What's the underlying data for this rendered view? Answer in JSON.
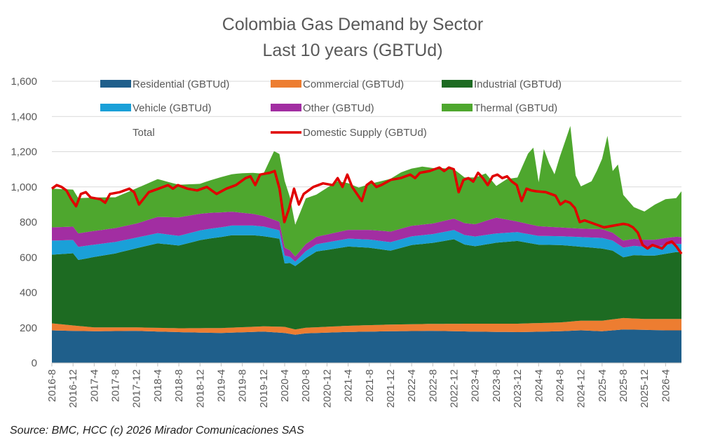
{
  "chart_data": {
    "type": "area",
    "title": "Colombia Gas Demand by Sector",
    "subtitle": "Last 10 years (GBTUd)",
    "source": "Source: BMC, HCC (c) 2026 Mirador Comunicaciones SAS",
    "ylim": [
      0,
      1600
    ],
    "y_ticks": [
      "0",
      "200",
      "400",
      "600",
      "800",
      "1,000",
      "1,200",
      "1,400",
      "1,600"
    ],
    "x_start": "2016-8",
    "x_end": "2026-7",
    "x_tick_labels": [
      "2016-8",
      "2016-12",
      "2017-4",
      "2017-8",
      "2017-12",
      "2018-4",
      "2018-8",
      "2018-12",
      "2019-4",
      "2019-8",
      "2019-12",
      "2020-4",
      "2020-8",
      "2020-12",
      "2021-4",
      "2021-8",
      "2021-12",
      "2022-4",
      "2022-8",
      "2022-12",
      "2023-4",
      "2023-8",
      "2023-12",
      "2024-4",
      "2024-8",
      "2024-12",
      "2025-4",
      "2025-8",
      "2025-12",
      "2026-4"
    ],
    "grid": true,
    "legend": [
      {
        "key": "residential",
        "label": "Residential (GBTUd)",
        "color": "#1f5f8b",
        "kind": "area"
      },
      {
        "key": "commercial",
        "label": "Commercial (GBTUd)",
        "color": "#ed7d31",
        "kind": "area"
      },
      {
        "key": "industrial",
        "label": "Industrial (GBTUd)",
        "color": "#1d6b22",
        "kind": "area"
      },
      {
        "key": "vehicle",
        "label": "Vehicle (GBTUd)",
        "color": "#1aa0d8",
        "kind": "area"
      },
      {
        "key": "other",
        "label": "Other (GBTUd)",
        "color": "#a22ea2",
        "kind": "area"
      },
      {
        "key": "thermal",
        "label": "Thermal (GBTUd)",
        "color": "#4ea72e",
        "kind": "area"
      },
      {
        "key": "total",
        "label": "Total",
        "color": "none",
        "kind": "none"
      },
      {
        "key": "supply",
        "label": "Domestic Supply (GBTUd)",
        "color": "#e00000",
        "kind": "line"
      }
    ],
    "anchors": {
      "residential": [
        [
          0,
          185
        ],
        [
          4,
          182
        ],
        [
          8,
          180
        ],
        [
          16,
          182
        ],
        [
          24,
          175
        ],
        [
          32,
          170
        ],
        [
          40,
          178
        ],
        [
          44,
          170
        ],
        [
          46,
          160
        ],
        [
          48,
          168
        ],
        [
          56,
          176
        ],
        [
          64,
          180
        ],
        [
          72,
          182
        ],
        [
          80,
          178
        ],
        [
          88,
          175
        ],
        [
          96,
          180
        ],
        [
          100,
          185
        ],
        [
          104,
          180
        ],
        [
          108,
          190
        ],
        [
          112,
          188
        ],
        [
          116,
          185
        ],
        [
          119,
          185
        ]
      ],
      "commercial": [
        [
          0,
          40
        ],
        [
          8,
          22
        ],
        [
          16,
          20
        ],
        [
          24,
          22
        ],
        [
          32,
          28
        ],
        [
          40,
          30
        ],
        [
          44,
          35
        ],
        [
          46,
          30
        ],
        [
          48,
          32
        ],
        [
          56,
          35
        ],
        [
          64,
          38
        ],
        [
          72,
          40
        ],
        [
          80,
          45
        ],
        [
          88,
          48
        ],
        [
          96,
          50
        ],
        [
          100,
          55
        ],
        [
          104,
          60
        ],
        [
          108,
          65
        ],
        [
          112,
          62
        ],
        [
          116,
          65
        ],
        [
          119,
          65
        ]
      ],
      "industrial": [
        [
          0,
          390
        ],
        [
          4,
          410
        ],
        [
          5,
          375
        ],
        [
          8,
          400
        ],
        [
          12,
          420
        ],
        [
          16,
          450
        ],
        [
          20,
          480
        ],
        [
          24,
          470
        ],
        [
          28,
          500
        ],
        [
          30,
          510
        ],
        [
          34,
          525
        ],
        [
          38,
          520
        ],
        [
          43,
          500
        ],
        [
          44,
          360
        ],
        [
          45,
          370
        ],
        [
          46,
          360
        ],
        [
          50,
          430
        ],
        [
          56,
          450
        ],
        [
          60,
          440
        ],
        [
          64,
          420
        ],
        [
          68,
          450
        ],
        [
          72,
          460
        ],
        [
          76,
          480
        ],
        [
          78,
          450
        ],
        [
          80,
          440
        ],
        [
          84,
          460
        ],
        [
          88,
          470
        ],
        [
          92,
          445
        ],
        [
          96,
          440
        ],
        [
          100,
          420
        ],
        [
          104,
          410
        ],
        [
          106,
          390
        ],
        [
          108,
          345
        ],
        [
          110,
          360
        ],
        [
          114,
          360
        ],
        [
          118,
          380
        ],
        [
          119,
          380
        ]
      ],
      "vehicle": [
        [
          0,
          80
        ],
        [
          8,
          70
        ],
        [
          16,
          60
        ],
        [
          24,
          55
        ],
        [
          32,
          55
        ],
        [
          40,
          55
        ],
        [
          44,
          45
        ],
        [
          46,
          25
        ],
        [
          48,
          40
        ],
        [
          56,
          45
        ],
        [
          64,
          48
        ],
        [
          72,
          50
        ],
        [
          80,
          55
        ],
        [
          88,
          50
        ],
        [
          96,
          50
        ],
        [
          100,
          55
        ],
        [
          104,
          60
        ],
        [
          108,
          55
        ],
        [
          112,
          50
        ],
        [
          116,
          50
        ],
        [
          119,
          45
        ]
      ],
      "other": [
        [
          0,
          75
        ],
        [
          8,
          78
        ],
        [
          16,
          80
        ],
        [
          24,
          105
        ],
        [
          32,
          85
        ],
        [
          40,
          60
        ],
        [
          44,
          45
        ],
        [
          46,
          30
        ],
        [
          48,
          40
        ],
        [
          56,
          50
        ],
        [
          64,
          60
        ],
        [
          72,
          60
        ],
        [
          80,
          70
        ],
        [
          84,
          90
        ],
        [
          88,
          60
        ],
        [
          92,
          55
        ],
        [
          96,
          50
        ],
        [
          100,
          48
        ],
        [
          104,
          50
        ],
        [
          108,
          40
        ],
        [
          112,
          40
        ],
        [
          116,
          40
        ],
        [
          119,
          40
        ]
      ],
      "thermal": [
        [
          0,
          220
        ],
        [
          4,
          210
        ],
        [
          5,
          200
        ],
        [
          8,
          190
        ],
        [
          12,
          175
        ],
        [
          16,
          200
        ],
        [
          20,
          215
        ],
        [
          24,
          185
        ],
        [
          28,
          170
        ],
        [
          32,
          200
        ],
        [
          36,
          225
        ],
        [
          40,
          240
        ],
        [
          42,
          390
        ],
        [
          44,
          380
        ],
        [
          45,
          300
        ],
        [
          46,
          180
        ],
        [
          48,
          260
        ],
        [
          50,
          240
        ],
        [
          54,
          290
        ],
        [
          58,
          240
        ],
        [
          62,
          280
        ],
        [
          66,
          320
        ],
        [
          70,
          330
        ],
        [
          74,
          300
        ],
        [
          78,
          260
        ],
        [
          82,
          270
        ],
        [
          84,
          180
        ],
        [
          86,
          230
        ],
        [
          87,
          240
        ],
        [
          88,
          250
        ],
        [
          90,
          400
        ],
        [
          91,
          440
        ],
        [
          92,
          250
        ],
        [
          93,
          440
        ],
        [
          94,
          360
        ],
        [
          95,
          300
        ],
        [
          96,
          400
        ],
        [
          97,
          490
        ],
        [
          98,
          580
        ],
        [
          99,
          300
        ],
        [
          100,
          240
        ],
        [
          102,
          270
        ],
        [
          103,
          330
        ],
        [
          104,
          400
        ],
        [
          105,
          540
        ],
        [
          106,
          350
        ],
        [
          107,
          410
        ],
        [
          108,
          260
        ],
        [
          110,
          180
        ],
        [
          112,
          160
        ],
        [
          114,
          200
        ],
        [
          116,
          220
        ],
        [
          118,
          220
        ],
        [
          119,
          260
        ]
      ],
      "supply": [
        [
          0,
          990
        ],
        [
          1,
          1010
        ],
        [
          2,
          1000
        ],
        [
          3,
          980
        ],
        [
          4,
          930
        ],
        [
          5,
          890
        ],
        [
          6,
          960
        ],
        [
          7,
          970
        ],
        [
          8,
          940
        ],
        [
          10,
          930
        ],
        [
          11,
          910
        ],
        [
          12,
          960
        ],
        [
          14,
          970
        ],
        [
          16,
          990
        ],
        [
          17,
          970
        ],
        [
          18,
          900
        ],
        [
          20,
          970
        ],
        [
          22,
          990
        ],
        [
          24,
          1010
        ],
        [
          25,
          990
        ],
        [
          26,
          1010
        ],
        [
          28,
          990
        ],
        [
          30,
          980
        ],
        [
          32,
          1000
        ],
        [
          34,
          960
        ],
        [
          36,
          990
        ],
        [
          38,
          1010
        ],
        [
          40,
          1050
        ],
        [
          41,
          1060
        ],
        [
          42,
          1010
        ],
        [
          43,
          1070
        ],
        [
          45,
          1080
        ],
        [
          46,
          1090
        ],
        [
          47,
          990
        ],
        [
          48,
          800
        ],
        [
          49,
          880
        ],
        [
          50,
          990
        ],
        [
          51,
          900
        ],
        [
          52,
          960
        ],
        [
          54,
          1000
        ],
        [
          56,
          1020
        ],
        [
          58,
          1010
        ],
        [
          59,
          1050
        ],
        [
          60,
          1000
        ],
        [
          61,
          1070
        ],
        [
          62,
          1000
        ],
        [
          64,
          920
        ],
        [
          65,
          1010
        ],
        [
          66,
          1030
        ],
        [
          67,
          1000
        ],
        [
          68,
          1010
        ],
        [
          70,
          1040
        ],
        [
          72,
          1050
        ],
        [
          74,
          1070
        ],
        [
          75,
          1050
        ],
        [
          76,
          1080
        ],
        [
          78,
          1090
        ],
        [
          80,
          1110
        ],
        [
          81,
          1090
        ],
        [
          82,
          1110
        ],
        [
          83,
          1100
        ],
        [
          84,
          970
        ],
        [
          85,
          1040
        ],
        [
          86,
          1050
        ],
        [
          87,
          1030
        ],
        [
          88,
          1080
        ],
        [
          89,
          1050
        ],
        [
          90,
          1010
        ],
        [
          91,
          1060
        ],
        [
          92,
          1070
        ],
        [
          93,
          1050
        ],
        [
          94,
          1060
        ],
        [
          95,
          1030
        ],
        [
          96,
          1010
        ],
        [
          97,
          920
        ],
        [
          98,
          990
        ],
        [
          99,
          980
        ],
        [
          100,
          975
        ],
        [
          102,
          970
        ],
        [
          103,
          960
        ],
        [
          104,
          950
        ],
        [
          105,
          900
        ],
        [
          106,
          920
        ],
        [
          107,
          910
        ],
        [
          108,
          880
        ],
        [
          109,
          800
        ],
        [
          110,
          810
        ],
        [
          112,
          790
        ],
        [
          114,
          770
        ],
        [
          116,
          780
        ],
        [
          118,
          790
        ],
        [
          119,
          785
        ],
        [
          120,
          770
        ],
        [
          121,
          740
        ],
        [
          122,
          670
        ],
        [
          123,
          650
        ],
        [
          124,
          670
        ],
        [
          125,
          660
        ],
        [
          126,
          650
        ],
        [
          127,
          680
        ],
        [
          128,
          690
        ],
        [
          129,
          660
        ],
        [
          130,
          620
        ]
      ]
    }
  }
}
